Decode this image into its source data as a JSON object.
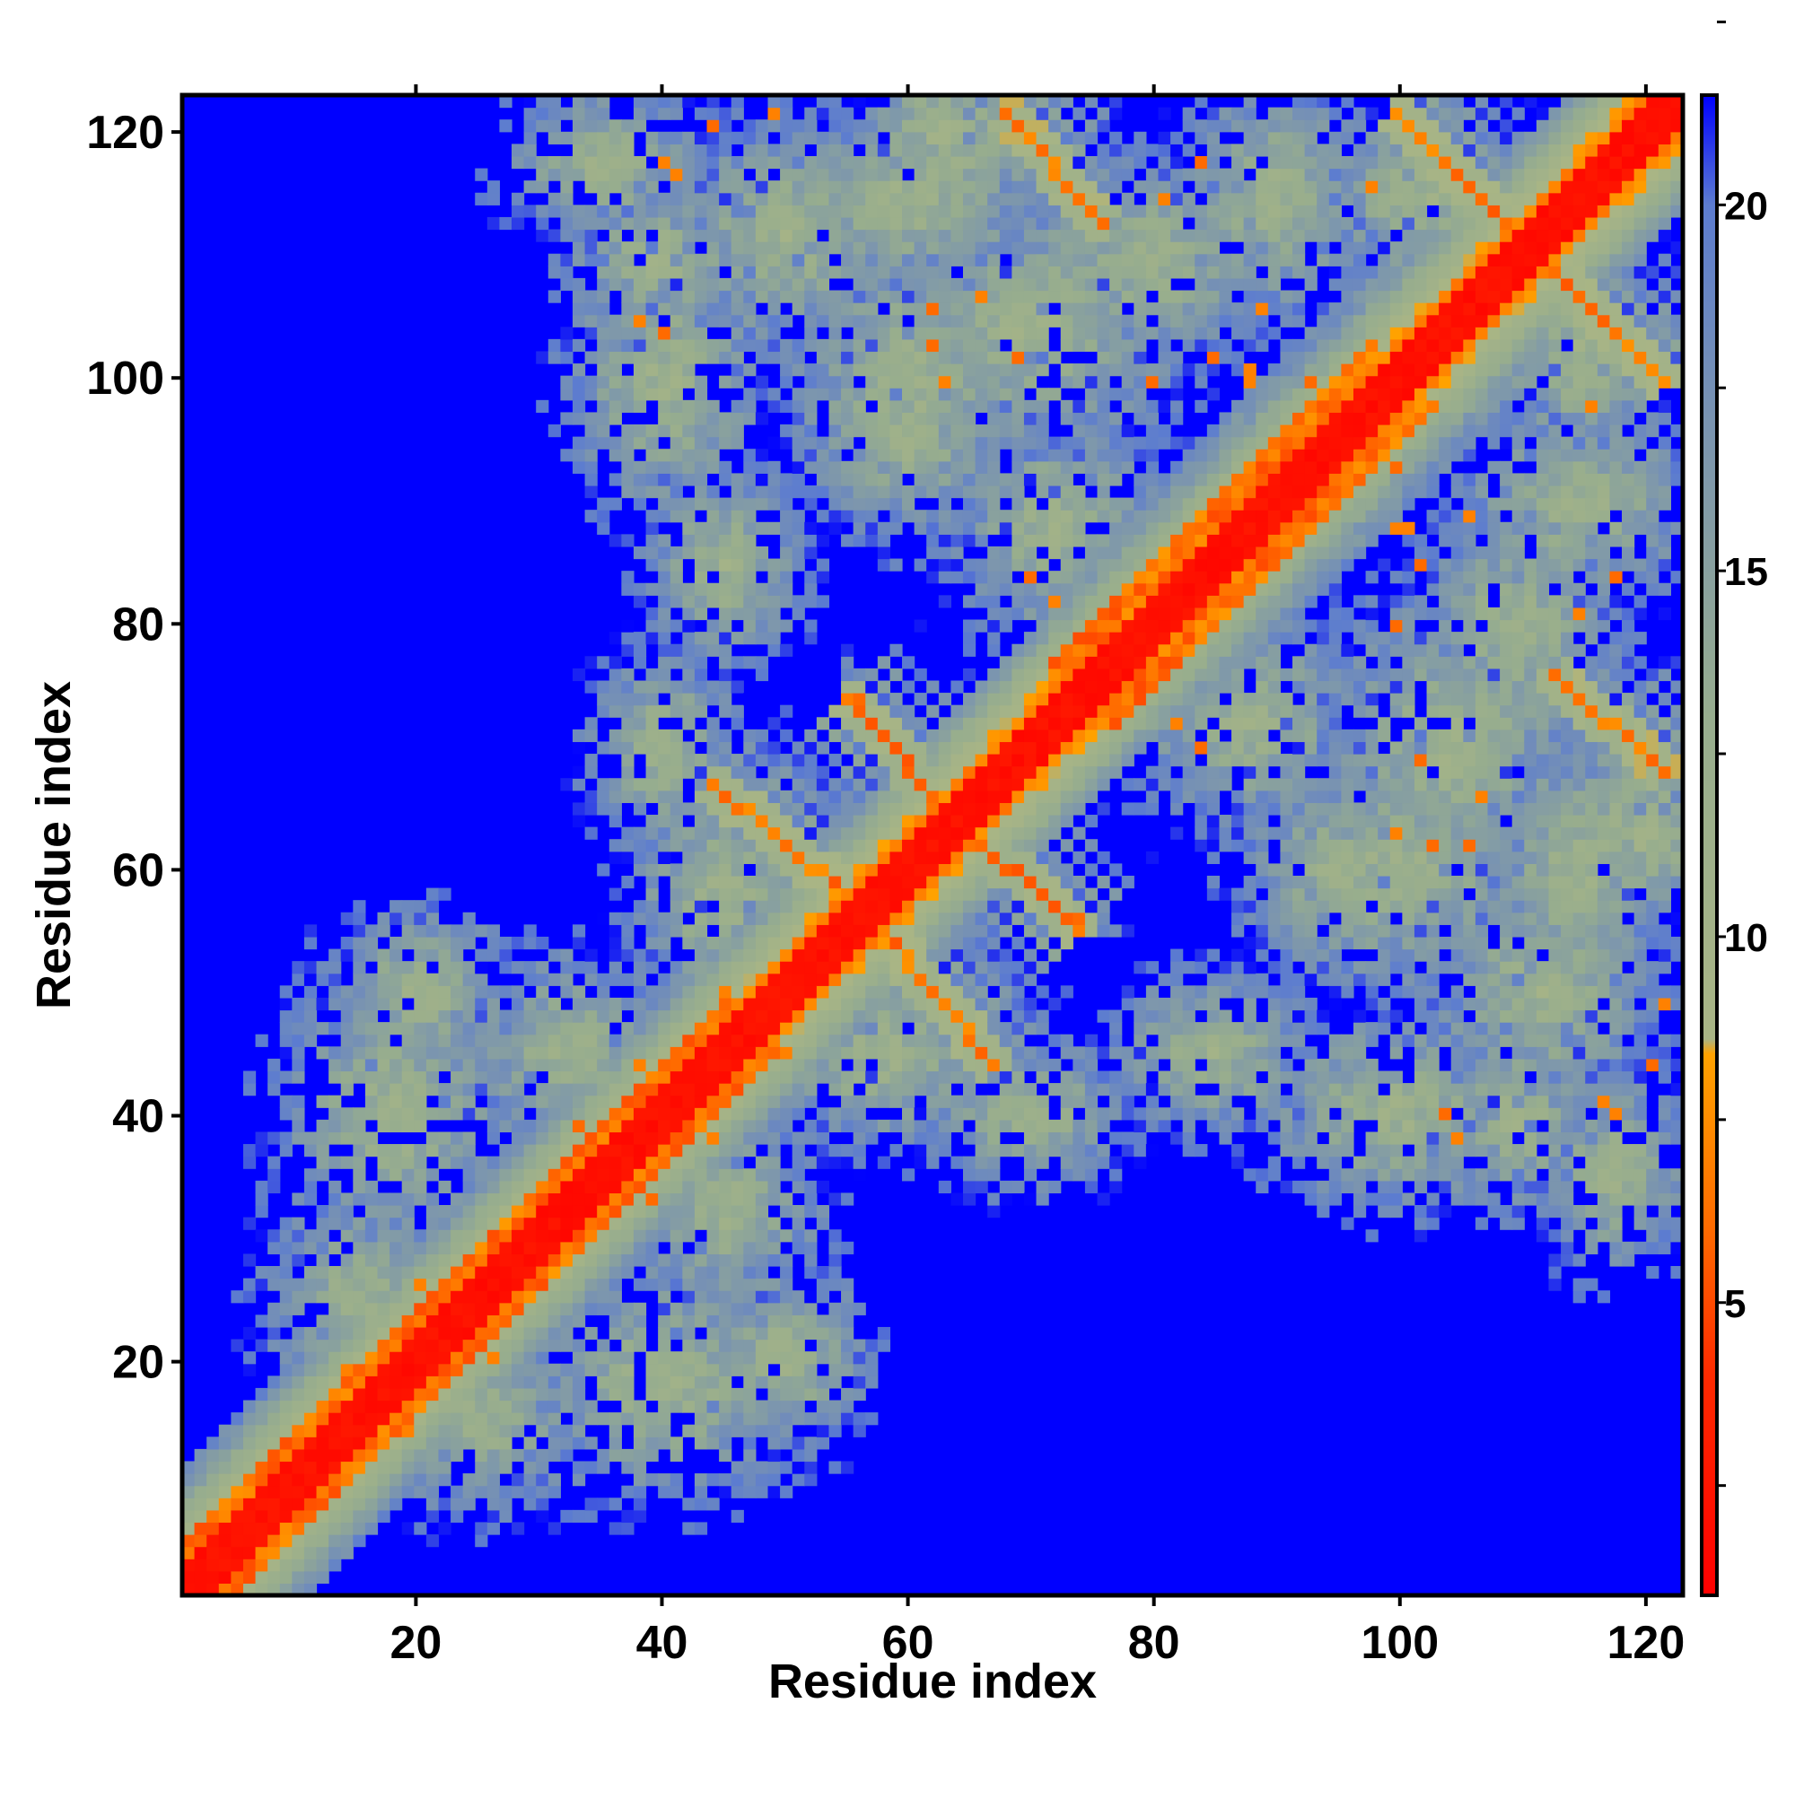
{
  "chart_data": {
    "type": "heatmap",
    "title": "",
    "xlabel": "Residue index",
    "ylabel": "Residue index",
    "n_residues": 123,
    "xlim": [
      1,
      123
    ],
    "ylim": [
      1,
      123
    ],
    "x_ticks": [
      20,
      40,
      60,
      80,
      100,
      120
    ],
    "y_ticks": [
      20,
      40,
      60,
      80,
      100,
      120
    ],
    "colorbar": {
      "ticks": [
        5,
        10,
        15,
        20
      ],
      "range": [
        1,
        21.5
      ],
      "colormap": [
        {
          "value": 1.0,
          "color": "#ff0000"
        },
        {
          "value": 4.0,
          "color": "#ff2a00"
        },
        {
          "value": 6.0,
          "color": "#ff6a00"
        },
        {
          "value": 8.4,
          "color": "#ffa200"
        },
        {
          "value": 8.6,
          "color": "#a9b585"
        },
        {
          "value": 13.0,
          "color": "#97ad8e"
        },
        {
          "value": 17.0,
          "color": "#7a94b0"
        },
        {
          "value": 20.0,
          "color": "#5c7cd0"
        },
        {
          "value": 21.5,
          "color": "#0000ff"
        }
      ]
    },
    "background_color": "#0000ff",
    "description_of_structures": [
      {
        "kind": "diagonal",
        "residues": [
          1,
          123
        ]
      },
      {
        "kind": "parallel_band",
        "residues": [
          1,
          45
        ],
        "offset": 3
      },
      {
        "kind": "parallel_band",
        "residues": [
          72,
          98
        ],
        "offset": 4
      },
      {
        "kind": "antiparallel_pair",
        "a": [
          44,
          56
        ],
        "b": [
          67,
          57
        ]
      },
      {
        "kind": "antiparallel_pair",
        "a": [
          55,
          64
        ],
        "b": [
          74,
          64
        ]
      },
      {
        "kind": "antiparallel_pair",
        "a": [
          68,
          76
        ],
        "b": [
          122,
          113
        ]
      },
      {
        "kind": "antiparallel_pair",
        "a": [
          100,
          109
        ],
        "b": [
          122,
          113
        ]
      }
    ],
    "points": [
      {
        "x": 10,
        "y": 13,
        "v": 6
      },
      {
        "x": 14,
        "y": 19,
        "v": 7
      },
      {
        "x": 20,
        "y": 26,
        "v": 7
      },
      {
        "x": 33,
        "y": 39,
        "v": 6
      },
      {
        "x": 44,
        "y": 38,
        "v": 7
      },
      {
        "x": 50,
        "y": 45,
        "v": 7
      },
      {
        "x": 70,
        "y": 84,
        "v": 6
      },
      {
        "x": 72,
        "y": 82,
        "v": 7
      },
      {
        "x": 74,
        "y": 56,
        "v": 6
      },
      {
        "x": 69,
        "y": 102,
        "v": 6
      },
      {
        "x": 63,
        "y": 100,
        "v": 7
      },
      {
        "x": 80,
        "y": 100,
        "v": 6
      },
      {
        "x": 88,
        "y": 100,
        "v": 7
      },
      {
        "x": 92,
        "y": 97,
        "v": 7
      },
      {
        "x": 100,
        "y": 93,
        "v": 6
      },
      {
        "x": 101,
        "y": 88,
        "v": 7
      },
      {
        "x": 102,
        "y": 85,
        "v": 6
      },
      {
        "x": 107,
        "y": 66,
        "v": 7
      },
      {
        "x": 103,
        "y": 62,
        "v": 6
      },
      {
        "x": 117,
        "y": 41,
        "v": 7
      },
      {
        "x": 104,
        "y": 40,
        "v": 6
      },
      {
        "x": 115,
        "y": 81,
        "v": 7
      },
      {
        "x": 118,
        "y": 84,
        "v": 6
      },
      {
        "x": 122,
        "y": 49,
        "v": 7
      },
      {
        "x": 40,
        "y": 118,
        "v": 7
      },
      {
        "x": 44,
        "y": 121,
        "v": 6
      },
      {
        "x": 38,
        "y": 105,
        "v": 7
      },
      {
        "x": 62,
        "y": 106,
        "v": 6
      },
      {
        "x": 89,
        "y": 106,
        "v": 7
      },
      {
        "x": 98,
        "y": 116,
        "v": 7
      }
    ]
  }
}
